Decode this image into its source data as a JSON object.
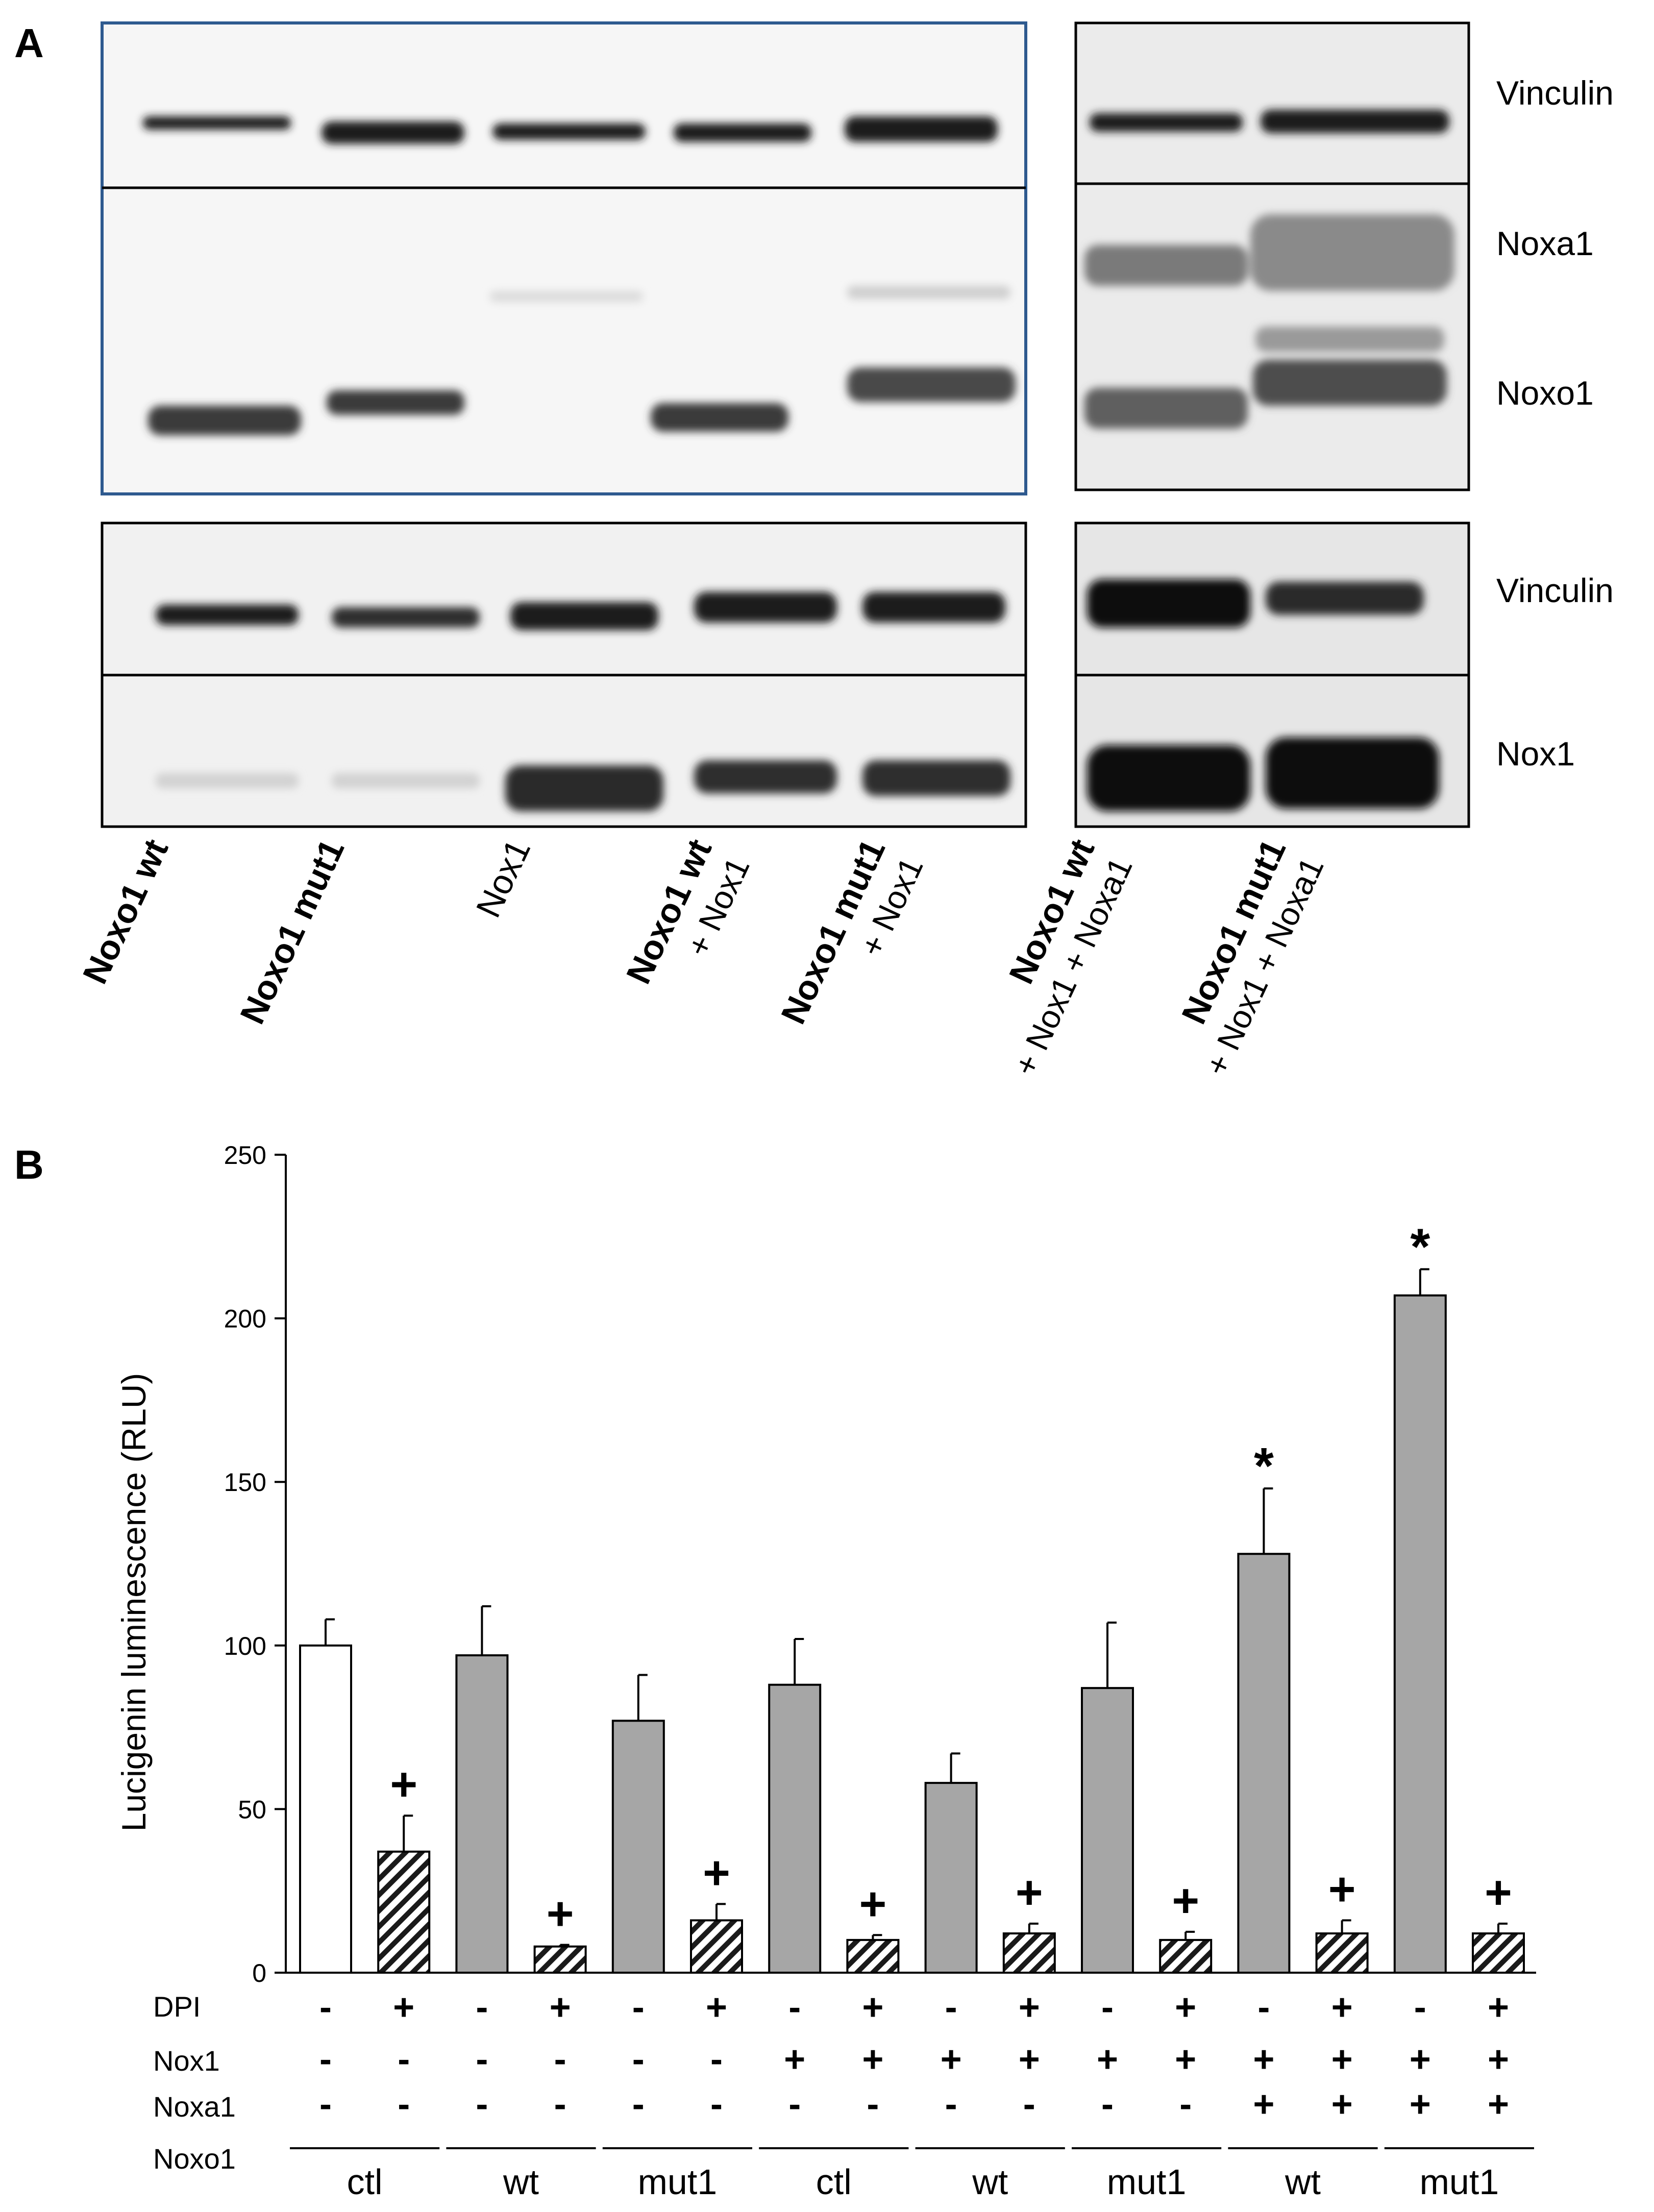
{
  "panel_a": {
    "label": "A",
    "right_labels": {
      "top_vinculin": "Vinculin",
      "noxa1": "Noxa1",
      "noxo1": "Noxo1",
      "bottom_vinculin": "Vinculin",
      "nox1": "Nox1"
    },
    "lanes": [
      {
        "line1": "Noxo1 wt",
        "line2": "",
        "bold": true
      },
      {
        "line1": "Noxo1 mut1",
        "line2": "",
        "bold": true
      },
      {
        "line1": "Nox1",
        "line2": "",
        "bold": false
      },
      {
        "line1": "Noxo1 wt",
        "line2": "+ Nox1",
        "bold": true
      },
      {
        "line1": "Noxo1 mut1",
        "line2": "+ Nox1",
        "bold": true
      },
      {
        "line1": "Noxo1 wt",
        "line2": "+ Nox1 + Noxa1",
        "bold": true
      },
      {
        "line1": "Noxo1 mut1",
        "line2": "+ Nox1 + Noxa1",
        "bold": true
      }
    ],
    "colors": {
      "frame_left_top": "#2e5a8f",
      "frame": "#000000",
      "band": "#1a1a1a"
    }
  },
  "panel_b": {
    "label": "B",
    "row_labels": {
      "dpi": "DPI",
      "nox1": "Nox1",
      "noxa1": "Noxa1",
      "noxo1": "Noxo1"
    },
    "dpi": [
      "-",
      "+",
      "-",
      "+",
      "-",
      "+",
      "-",
      "+",
      "-",
      "+",
      "-",
      "+",
      "-",
      "+",
      "-",
      "+"
    ],
    "nox1": [
      "-",
      "-",
      "-",
      "-",
      "-",
      "-",
      "+",
      "+",
      "+",
      "+",
      "+",
      "+",
      "+",
      "+",
      "+",
      "+"
    ],
    "noxa1": [
      "-",
      "-",
      "-",
      "-",
      "-",
      "-",
      "-",
      "-",
      "-",
      "-",
      "-",
      "-",
      "+",
      "+",
      "+",
      "+"
    ],
    "noxo1_groups": [
      "ctl",
      "wt",
      "mut1",
      "ctl",
      "wt",
      "mut1",
      "wt",
      "mut1"
    ]
  },
  "chart_data": {
    "type": "bar",
    "ylabel": "Lucigenin luminescence (RLU)",
    "ylim": [
      0,
      250
    ],
    "yticks": [
      "0",
      "50",
      "100",
      "150",
      "200",
      "250"
    ],
    "values": [
      100,
      37,
      97,
      8,
      77,
      16,
      88,
      10,
      58,
      12,
      87,
      10,
      128,
      12,
      207,
      12
    ],
    "errors": [
      8,
      11,
      15,
      0.5,
      14,
      5,
      14,
      1.5,
      9,
      3,
      20,
      2.5,
      20,
      4,
      8,
      3
    ],
    "fills": [
      "white",
      "hatch",
      "gray",
      "hatch",
      "gray",
      "hatch",
      "gray",
      "hatch",
      "gray",
      "hatch",
      "gray",
      "hatch",
      "gray",
      "hatch",
      "gray",
      "hatch"
    ],
    "annotations": [
      "",
      "+",
      "",
      "+",
      "",
      "+",
      "",
      "+",
      "",
      "+",
      "",
      "+",
      "*",
      "+",
      "*",
      "+"
    ],
    "grid": false,
    "colors": {
      "gray": "#a6a6a6",
      "white": "#ffffff",
      "axis": "#000000"
    }
  }
}
